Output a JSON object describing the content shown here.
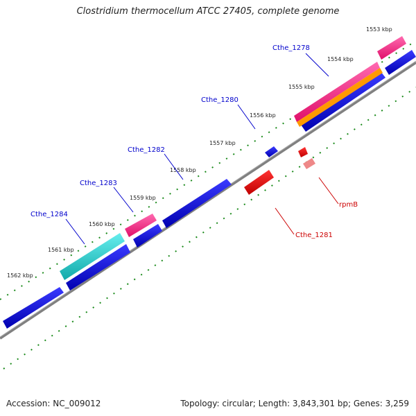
{
  "title": "Clostridium thermocellum ATCC 27405, complete genome",
  "footer": {
    "accession": "Accession: NC_009012",
    "summary": "Topology: circular; Length: 3,843,301 bp; Genes: 3,259"
  },
  "colors": {
    "forward_cds": "#0000dd",
    "reverse_cds": "#dd0000",
    "trna": "#ff2a8a",
    "rrna": "#22cccc",
    "orange": "#ff9900",
    "backbone": "#808080",
    "tick": "#1a8a1a",
    "forward_label": "#0000cc",
    "reverse_label": "#cc0000"
  },
  "kbp_labels": [
    "1553 kbp",
    "1554 kbp",
    "1555 kbp",
    "1556 kbp",
    "1557 kbp",
    "1558 kbp",
    "1559 kbp",
    "1560 kbp",
    "1561 kbp",
    "1562 kbp"
  ],
  "gene_labels": [
    {
      "name": "Cthe_1278",
      "strand": "forward"
    },
    {
      "name": "Cthe_1280",
      "strand": "forward"
    },
    {
      "name": "Cthe_1282",
      "strand": "forward"
    },
    {
      "name": "Cthe_1283",
      "strand": "forward"
    },
    {
      "name": "Cthe_1284",
      "strand": "forward"
    },
    {
      "name": "rpmB",
      "strand": "reverse"
    },
    {
      "name": "Cthe_1281",
      "strand": "reverse"
    }
  ]
}
